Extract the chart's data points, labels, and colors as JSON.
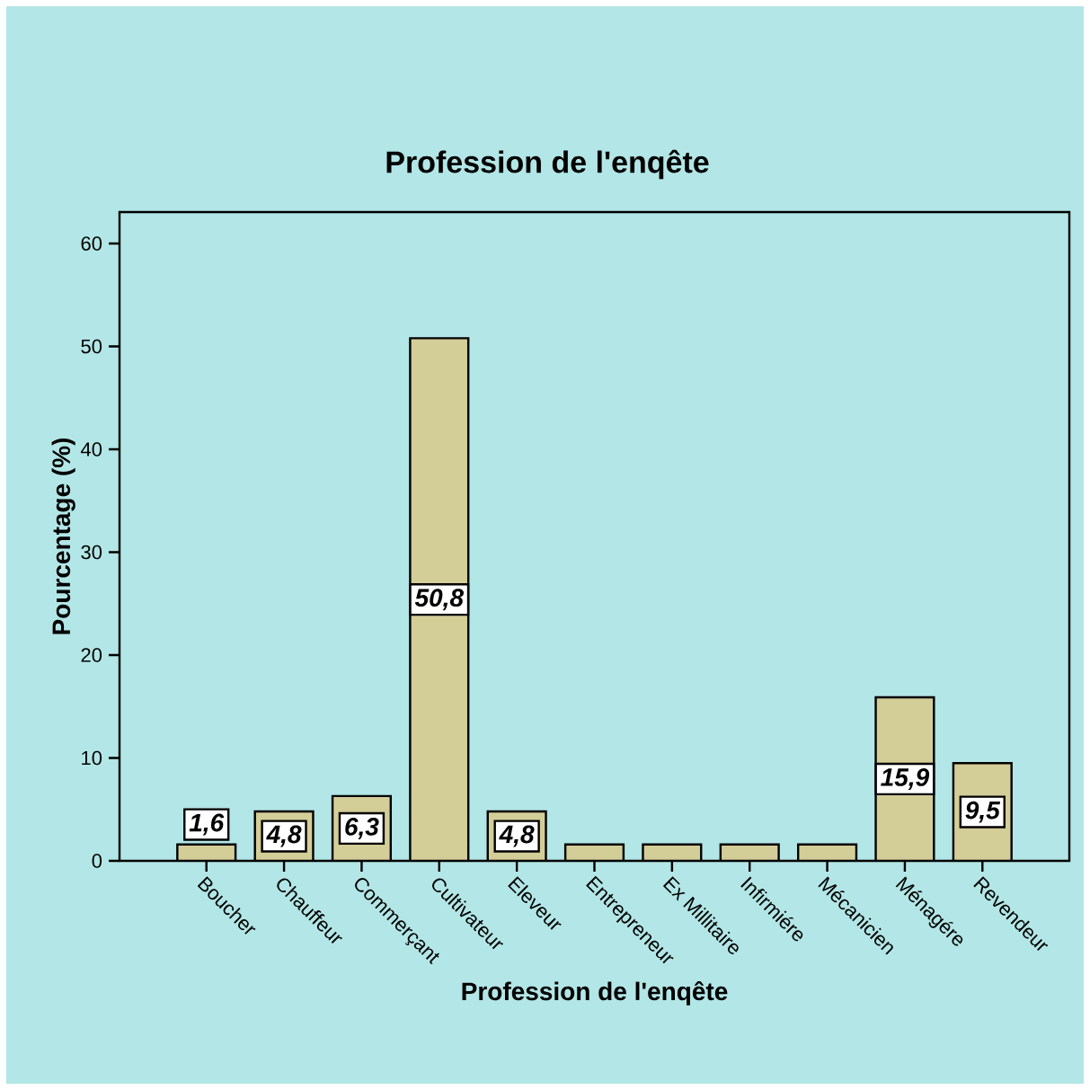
{
  "chart_data": {
    "type": "bar",
    "title": "Profession de l'enqête",
    "xlabel": "Profession de l'enqête",
    "ylabel": "Pourcentage (%)",
    "categories": [
      "Boucher",
      "Chauffeur",
      "Commerçant",
      "Cultivateur",
      "Eleveur",
      "Entrepreneur",
      "Ex Millitaire",
      "Infirmiére",
      "Mécanicien",
      "Ménagére",
      "Revendeur"
    ],
    "values": [
      1.6,
      4.8,
      6.3,
      50.8,
      4.8,
      1.6,
      1.6,
      1.6,
      1.6,
      15.9,
      9.5
    ],
    "value_labels": [
      "1,6",
      "4,8",
      "6,3",
      "50,8",
      "4,8",
      null,
      null,
      null,
      null,
      "15,9",
      "9,5"
    ],
    "color": "#d3cd98",
    "ylim": [
      0,
      63.06
    ],
    "yticks": [
      0,
      10,
      20,
      30,
      40,
      50,
      60
    ]
  }
}
